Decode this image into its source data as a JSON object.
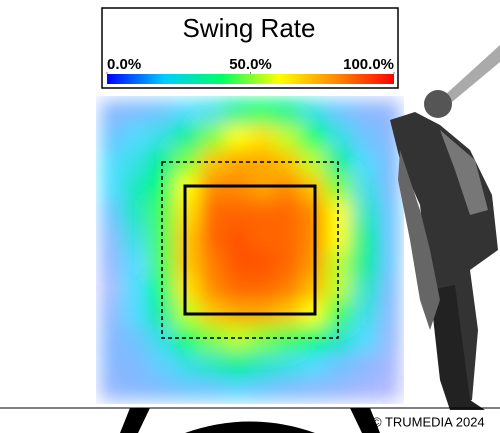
{
  "chart_data": {
    "type": "heatmap",
    "title": "Swing Rate",
    "credit": "© TRUMEDIA 2024",
    "colorscale": [
      "#0000ff",
      "#00ccff",
      "#00ff66",
      "#ffff00",
      "#ff8800",
      "#ff0000"
    ],
    "clim": [
      0,
      100
    ],
    "cticks": [
      {
        "value": 0,
        "label": "0.0%"
      },
      {
        "value": 50,
        "label": "50.0%"
      },
      {
        "value": 100,
        "label": "100.0%"
      }
    ],
    "values": [
      [
        10,
        12,
        15,
        20,
        25,
        35,
        40,
        35,
        25,
        15,
        10,
        8
      ],
      [
        15,
        20,
        25,
        35,
        50,
        60,
        65,
        55,
        40,
        25,
        15,
        10
      ],
      [
        20,
        25,
        35,
        50,
        70,
        75,
        75,
        70,
        55,
        35,
        20,
        12
      ],
      [
        20,
        30,
        40,
        60,
        80,
        80,
        75,
        80,
        70,
        50,
        25,
        12
      ],
      [
        15,
        30,
        45,
        65,
        85,
        85,
        85,
        85,
        80,
        60,
        30,
        15
      ],
      [
        10,
        25,
        45,
        70,
        85,
        88,
        85,
        85,
        80,
        60,
        35,
        15
      ],
      [
        8,
        20,
        45,
        70,
        82,
        88,
        88,
        85,
        78,
        55,
        35,
        15
      ],
      [
        5,
        20,
        40,
        65,
        80,
        85,
        85,
        82,
        72,
        55,
        30,
        12
      ],
      [
        8,
        20,
        35,
        55,
        70,
        75,
        75,
        70,
        60,
        45,
        25,
        10
      ],
      [
        10,
        15,
        25,
        40,
        50,
        55,
        50,
        45,
        40,
        30,
        20,
        8
      ],
      [
        10,
        12,
        18,
        25,
        30,
        35,
        30,
        25,
        20,
        15,
        10,
        5
      ],
      [
        8,
        10,
        12,
        15,
        15,
        18,
        15,
        12,
        10,
        8,
        5,
        3
      ]
    ]
  }
}
